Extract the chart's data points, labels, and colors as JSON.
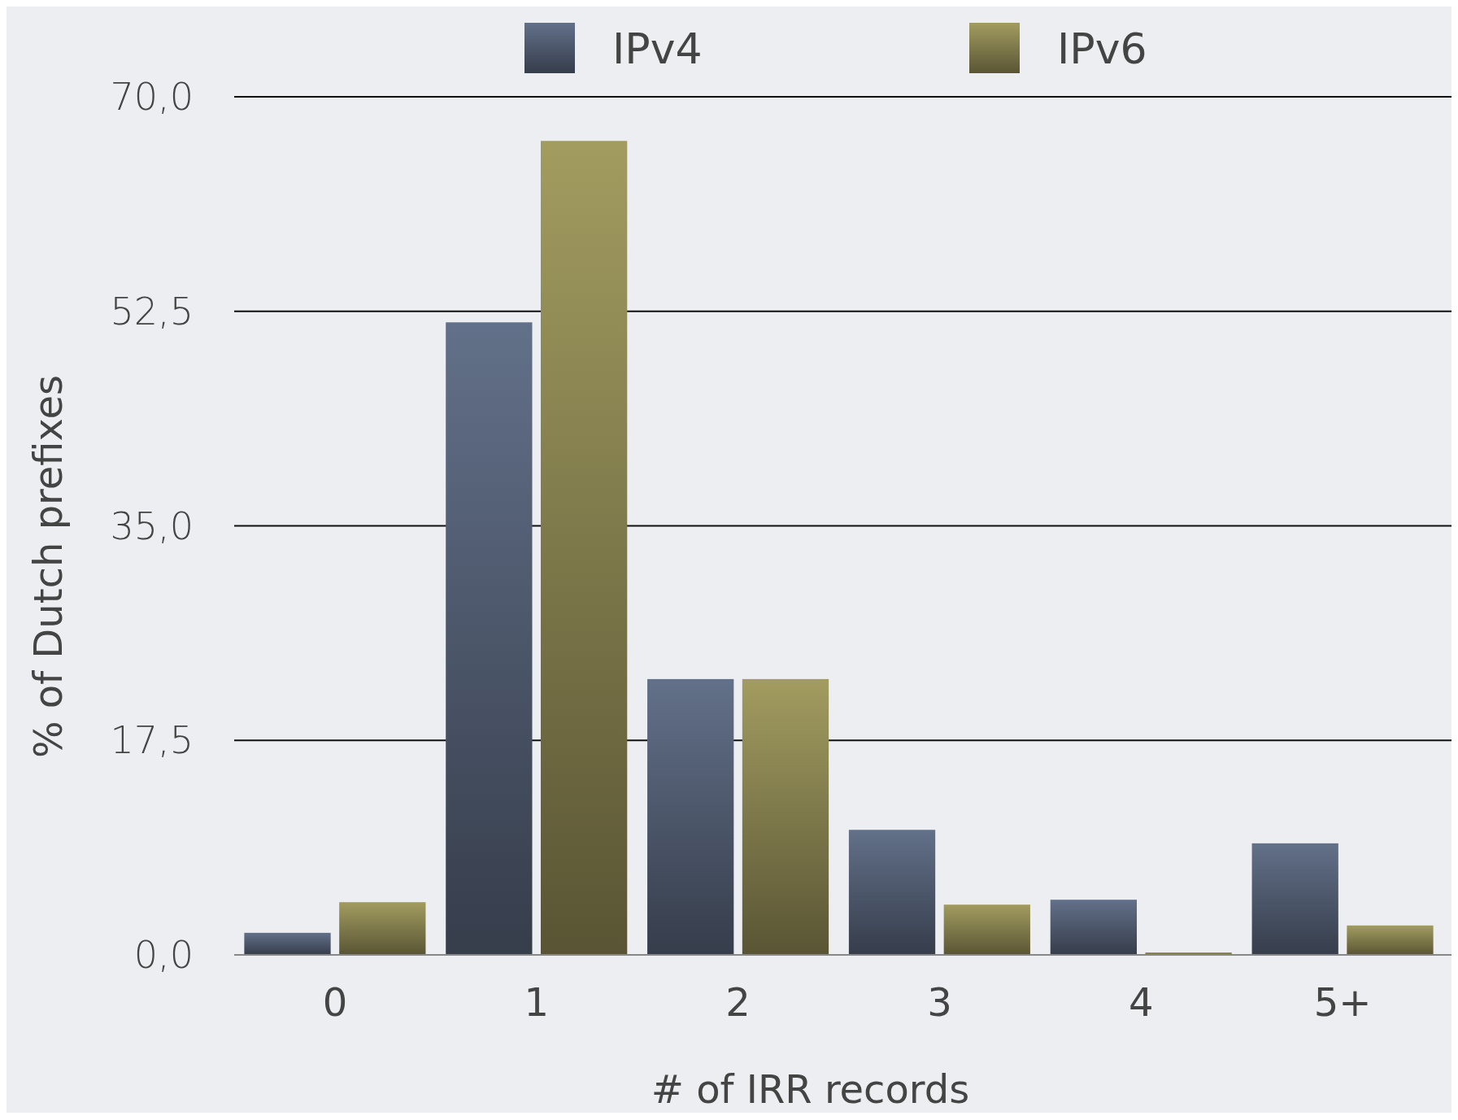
{
  "chart_data": {
    "type": "bar",
    "xlabel": "# of IRR records",
    "ylabel": "% of Dutch prefixes",
    "categories": [
      "0",
      "1",
      "2",
      "3",
      "4",
      "5+"
    ],
    "series": [
      {
        "name": "IPv4",
        "color": "#4a5467",
        "values": [
          1.8,
          51.6,
          22.5,
          10.2,
          4.5,
          9.1
        ]
      },
      {
        "name": "IPv6",
        "color": "#7a7548",
        "values": [
          4.3,
          66.4,
          22.5,
          4.1,
          0.2,
          2.4
        ]
      }
    ],
    "ylim": [
      0,
      70
    ],
    "yticks": [
      {
        "value": 0,
        "label": "0,0"
      },
      {
        "value": 17.5,
        "label": "17,5"
      },
      {
        "value": 35,
        "label": "35,0"
      },
      {
        "value": 52.5,
        "label": "52,5"
      },
      {
        "value": 70,
        "label": "70,0"
      }
    ],
    "grid": "y",
    "legend": "top"
  }
}
